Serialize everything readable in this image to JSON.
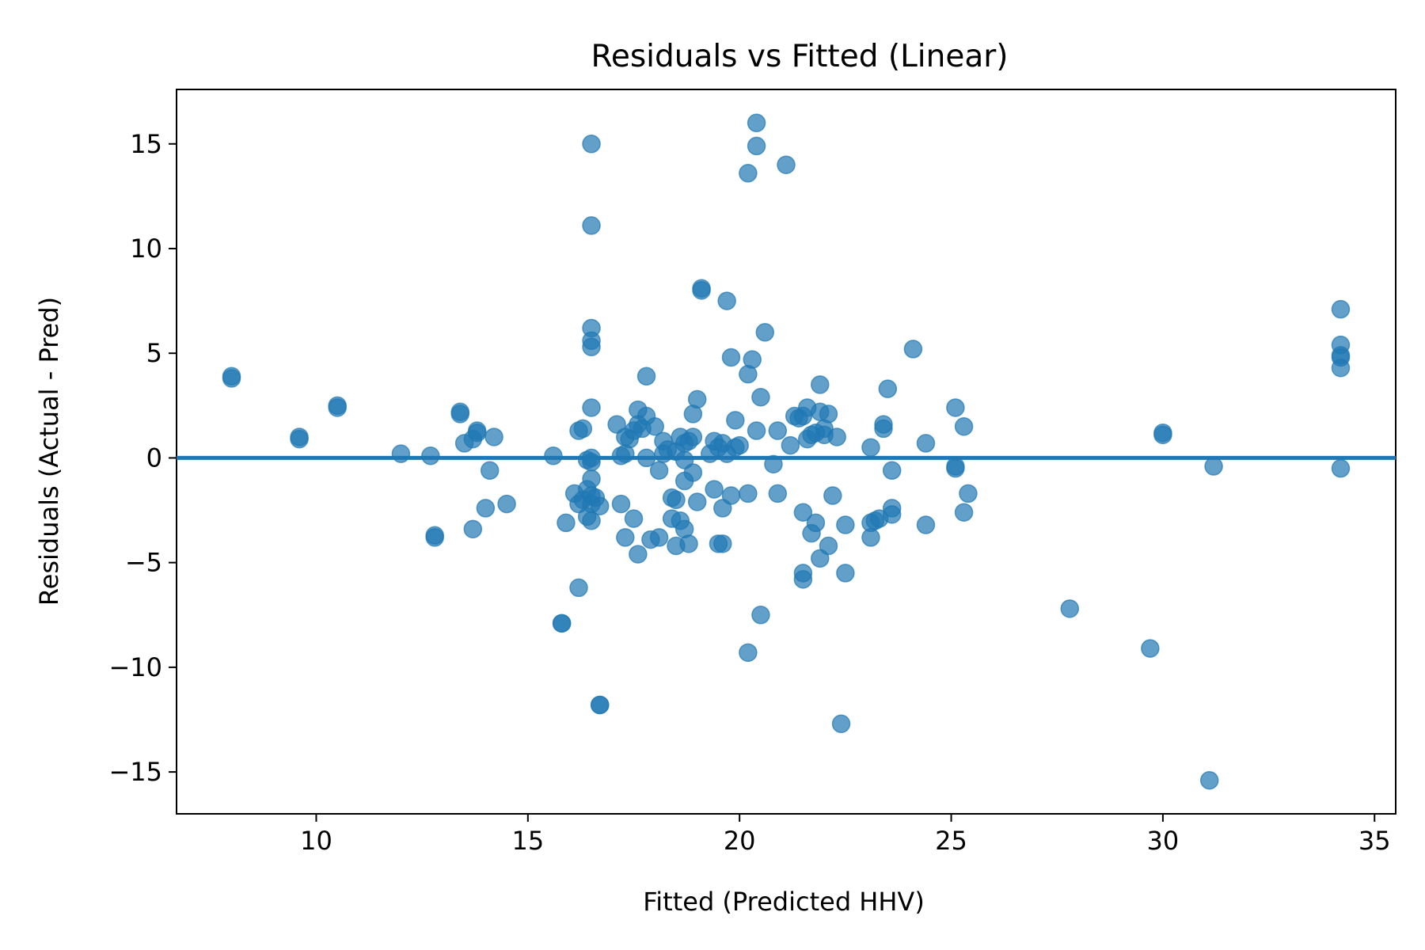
{
  "chart_data": {
    "type": "scatter",
    "title": "Residuals vs Fitted (Linear)",
    "xlabel": "Fitted (Predicted HHV)",
    "ylabel": "Residuals (Actual - Pred)",
    "xlim": [
      6.7,
      35.5
    ],
    "ylim": [
      -17.0,
      17.6
    ],
    "xticks": [
      10,
      15,
      20,
      25,
      30,
      35
    ],
    "yticks": [
      -15,
      -10,
      -5,
      0,
      5,
      10,
      15
    ],
    "xtick_labels": [
      "10",
      "15",
      "20",
      "25",
      "30",
      "35"
    ],
    "ytick_labels": [
      "−15",
      "−10",
      "−5",
      "0",
      "5",
      "10",
      "15"
    ],
    "reference_line_y": 0,
    "grid": false,
    "legend": "none",
    "marker_color": "#1f77b4",
    "marker_alpha": 0.7,
    "series": [
      {
        "points": [
          [
            8.0,
            3.9
          ],
          [
            8.0,
            3.8
          ],
          [
            9.6,
            1.0
          ],
          [
            9.6,
            0.9
          ],
          [
            10.5,
            2.4
          ],
          [
            10.5,
            2.5
          ],
          [
            12.0,
            0.2
          ],
          [
            12.7,
            0.1
          ],
          [
            12.8,
            -3.8
          ],
          [
            12.8,
            -3.7
          ],
          [
            13.4,
            2.2
          ],
          [
            13.4,
            2.1
          ],
          [
            13.5,
            0.7
          ],
          [
            13.7,
            0.9
          ],
          [
            13.8,
            1.3
          ],
          [
            13.8,
            1.2
          ],
          [
            13.7,
            -3.4
          ],
          [
            14.0,
            -2.4
          ],
          [
            14.1,
            -0.6
          ],
          [
            14.2,
            1.0
          ],
          [
            14.5,
            -2.2
          ],
          [
            15.6,
            0.1
          ],
          [
            15.8,
            -7.9
          ],
          [
            15.8,
            -7.9
          ],
          [
            15.9,
            -3.1
          ],
          [
            16.1,
            -1.7
          ],
          [
            16.2,
            1.3
          ],
          [
            16.2,
            -2.2
          ],
          [
            16.2,
            -6.2
          ],
          [
            16.3,
            1.4
          ],
          [
            16.3,
            -2.0
          ],
          [
            16.4,
            -0.1
          ],
          [
            16.4,
            -1.5
          ],
          [
            16.4,
            -2.8
          ],
          [
            16.5,
            15.0
          ],
          [
            16.5,
            11.1
          ],
          [
            16.5,
            6.2
          ],
          [
            16.5,
            5.6
          ],
          [
            16.5,
            5.3
          ],
          [
            16.5,
            2.4
          ],
          [
            16.5,
            0.0
          ],
          [
            16.5,
            -0.2
          ],
          [
            16.5,
            -1.0
          ],
          [
            16.5,
            -1.8
          ],
          [
            16.5,
            -2.2
          ],
          [
            16.5,
            -3.0
          ],
          [
            16.6,
            -1.9
          ],
          [
            16.7,
            -11.8
          ],
          [
            16.7,
            -11.8
          ],
          [
            16.7,
            -2.3
          ],
          [
            17.1,
            1.6
          ],
          [
            17.2,
            -2.2
          ],
          [
            17.2,
            0.1
          ],
          [
            17.3,
            0.2
          ],
          [
            17.3,
            1.0
          ],
          [
            17.3,
            -3.8
          ],
          [
            17.4,
            0.9
          ],
          [
            17.5,
            1.3
          ],
          [
            17.5,
            -2.9
          ],
          [
            17.6,
            2.3
          ],
          [
            17.6,
            1.6
          ],
          [
            17.7,
            1.4
          ],
          [
            17.6,
            -4.6
          ],
          [
            17.8,
            3.9
          ],
          [
            17.8,
            0.0
          ],
          [
            17.8,
            2.0
          ],
          [
            17.9,
            -3.9
          ],
          [
            18.0,
            1.5
          ],
          [
            18.1,
            -3.8
          ],
          [
            18.1,
            -0.6
          ],
          [
            18.2,
            0.2
          ],
          [
            18.2,
            0.8
          ],
          [
            18.3,
            0.4
          ],
          [
            18.4,
            -1.9
          ],
          [
            18.4,
            -2.9
          ],
          [
            18.5,
            -4.2
          ],
          [
            18.5,
            -2.0
          ],
          [
            18.5,
            0.3
          ],
          [
            18.6,
            1.0
          ],
          [
            18.6,
            -3.0
          ],
          [
            18.7,
            -0.1
          ],
          [
            18.7,
            0.7
          ],
          [
            18.7,
            -1.1
          ],
          [
            18.7,
            -3.4
          ],
          [
            18.8,
            -4.1
          ],
          [
            18.8,
            0.8
          ],
          [
            18.9,
            2.1
          ],
          [
            18.9,
            1.0
          ],
          [
            18.9,
            -0.7
          ],
          [
            19.0,
            2.8
          ],
          [
            19.0,
            -2.1
          ],
          [
            19.1,
            8.1
          ],
          [
            19.1,
            8.0
          ],
          [
            19.3,
            0.2
          ],
          [
            19.4,
            -1.5
          ],
          [
            19.4,
            0.8
          ],
          [
            19.5,
            -4.1
          ],
          [
            19.5,
            0.5
          ],
          [
            19.6,
            0.7
          ],
          [
            19.6,
            -2.4
          ],
          [
            19.6,
            -4.1
          ],
          [
            19.7,
            7.5
          ],
          [
            19.7,
            0.2
          ],
          [
            19.8,
            4.8
          ],
          [
            19.8,
            -1.8
          ],
          [
            19.9,
            1.8
          ],
          [
            19.9,
            0.5
          ],
          [
            20.0,
            0.6
          ],
          [
            20.2,
            13.6
          ],
          [
            20.2,
            4.0
          ],
          [
            20.2,
            -1.7
          ],
          [
            20.2,
            -9.3
          ],
          [
            20.3,
            4.7
          ],
          [
            20.4,
            16.0
          ],
          [
            20.4,
            14.9
          ],
          [
            20.4,
            1.3
          ],
          [
            20.5,
            2.9
          ],
          [
            20.5,
            -7.5
          ],
          [
            20.6,
            6.0
          ],
          [
            20.8,
            -0.3
          ],
          [
            20.9,
            1.3
          ],
          [
            20.9,
            -1.7
          ],
          [
            21.1,
            14.0
          ],
          [
            21.2,
            0.6
          ],
          [
            21.3,
            2.0
          ],
          [
            21.4,
            1.9
          ],
          [
            21.5,
            2.0
          ],
          [
            21.5,
            -2.6
          ],
          [
            21.5,
            -5.5
          ],
          [
            21.5,
            -5.8
          ],
          [
            21.6,
            2.4
          ],
          [
            21.6,
            0.9
          ],
          [
            21.7,
            1.1
          ],
          [
            21.7,
            -3.6
          ],
          [
            21.8,
            1.2
          ],
          [
            21.8,
            -3.1
          ],
          [
            21.9,
            3.5
          ],
          [
            21.9,
            2.2
          ],
          [
            21.9,
            -4.8
          ],
          [
            22.0,
            1.4
          ],
          [
            22.0,
            1.1
          ],
          [
            22.1,
            2.1
          ],
          [
            22.1,
            -4.2
          ],
          [
            22.2,
            -1.8
          ],
          [
            22.3,
            1.0
          ],
          [
            22.4,
            -12.7
          ],
          [
            22.5,
            -3.2
          ],
          [
            22.5,
            -5.5
          ],
          [
            23.1,
            0.5
          ],
          [
            23.1,
            -3.1
          ],
          [
            23.1,
            -3.8
          ],
          [
            23.2,
            -3.0
          ],
          [
            23.3,
            -2.9
          ],
          [
            23.4,
            1.6
          ],
          [
            23.4,
            1.4
          ],
          [
            23.5,
            3.3
          ],
          [
            23.6,
            -2.4
          ],
          [
            23.6,
            -2.7
          ],
          [
            23.6,
            -0.6
          ],
          [
            24.1,
            5.2
          ],
          [
            24.4,
            0.7
          ],
          [
            24.4,
            -3.2
          ],
          [
            25.1,
            2.4
          ],
          [
            25.1,
            -0.4
          ],
          [
            25.1,
            -0.5
          ],
          [
            25.3,
            -2.6
          ],
          [
            25.3,
            1.5
          ],
          [
            25.4,
            -1.7
          ],
          [
            27.8,
            -7.2
          ],
          [
            29.7,
            -9.1
          ],
          [
            30.0,
            1.2
          ],
          [
            30.0,
            1.1
          ],
          [
            31.1,
            -15.4
          ],
          [
            31.2,
            -0.4
          ],
          [
            34.2,
            7.1
          ],
          [
            34.2,
            5.4
          ],
          [
            34.2,
            4.9
          ],
          [
            34.2,
            4.8
          ],
          [
            34.2,
            4.3
          ],
          [
            34.2,
            -0.5
          ]
        ]
      }
    ]
  }
}
